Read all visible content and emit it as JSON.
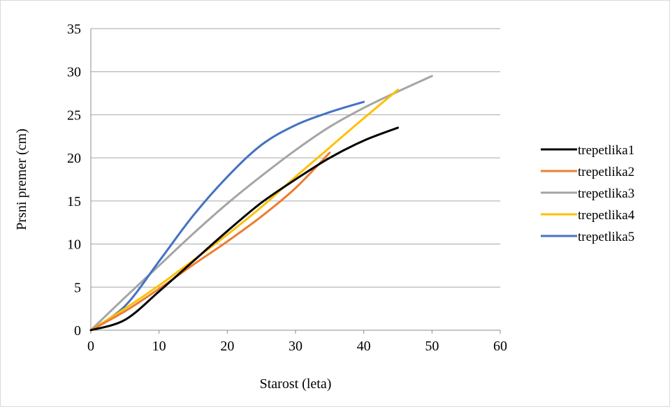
{
  "chart_data": {
    "type": "line",
    "title": "",
    "xlabel": "Starost (leta)",
    "ylabel": "Prsni premer (cm)",
    "xlim": [
      0,
      60
    ],
    "ylim": [
      0,
      35
    ],
    "xticks": [
      0,
      10,
      20,
      30,
      40,
      50,
      60
    ],
    "yticks": [
      0,
      5,
      10,
      15,
      20,
      25,
      30,
      35
    ],
    "grid": "horizontal",
    "legend_position": "right",
    "series": [
      {
        "name": "trepetlika1",
        "color": "#000000",
        "points": [
          [
            0,
            0
          ],
          [
            5,
            1.2
          ],
          [
            10,
            4.5
          ],
          [
            15,
            8
          ],
          [
            20,
            11.5
          ],
          [
            25,
            14.8
          ],
          [
            30,
            17.5
          ],
          [
            35,
            20
          ],
          [
            40,
            22
          ],
          [
            45,
            23.5
          ]
        ]
      },
      {
        "name": "trepetlika2",
        "color": "#ED7D31",
        "points": [
          [
            0,
            0
          ],
          [
            5,
            2.2
          ],
          [
            10,
            4.8
          ],
          [
            15,
            7.6
          ],
          [
            20,
            10.3
          ],
          [
            25,
            13.2
          ],
          [
            30,
            16.5
          ],
          [
            35,
            20.6
          ]
        ]
      },
      {
        "name": "trepetlika3",
        "color": "#A5A5A5",
        "points": [
          [
            0,
            0
          ],
          [
            5,
            3.8
          ],
          [
            10,
            7.5
          ],
          [
            15,
            11.2
          ],
          [
            20,
            14.7
          ],
          [
            25,
            17.9
          ],
          [
            30,
            20.9
          ],
          [
            35,
            23.6
          ],
          [
            40,
            25.8
          ],
          [
            45,
            27.7
          ],
          [
            50,
            29.5
          ]
        ]
      },
      {
        "name": "trepetlika4",
        "color": "#FFC000",
        "points": [
          [
            0,
            0
          ],
          [
            5,
            2.5
          ],
          [
            10,
            5.2
          ],
          [
            15,
            8.1
          ],
          [
            20,
            11.1
          ],
          [
            25,
            14.3
          ],
          [
            30,
            17.8
          ],
          [
            35,
            21.2
          ],
          [
            40,
            24.6
          ],
          [
            45,
            27.9
          ]
        ]
      },
      {
        "name": "trepetlika5",
        "color": "#4472C4",
        "points": [
          [
            0,
            0
          ],
          [
            5,
            2.8
          ],
          [
            10,
            8
          ],
          [
            15,
            13.3
          ],
          [
            20,
            17.8
          ],
          [
            25,
            21.5
          ],
          [
            30,
            23.8
          ],
          [
            35,
            25.3
          ],
          [
            40,
            26.5
          ]
        ]
      }
    ]
  }
}
